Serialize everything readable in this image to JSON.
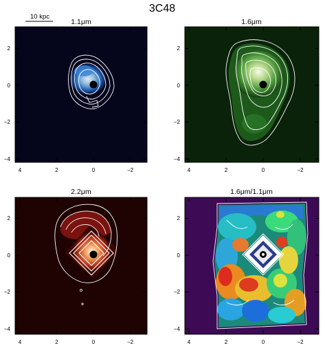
{
  "figure": {
    "title": "3C48",
    "scale_bar_label": "10 kpc",
    "panels": [
      {
        "id": "p11",
        "title": "1.1μm",
        "bg": "#05051c",
        "colormap": "blue"
      },
      {
        "id": "p16",
        "title": "1.6μm",
        "bg": "#0a2209",
        "colormap": "green"
      },
      {
        "id": "p22",
        "title": "2.2μm",
        "bg": "#1f0303",
        "colormap": "red"
      },
      {
        "id": "pratio",
        "title": "1.6μm/1.1μm",
        "bg": "#3d0a55",
        "colormap": "rainbow"
      }
    ],
    "x_tick_labels": [
      "4",
      "2",
      "0",
      "−2"
    ],
    "y_tick_labels": [
      "2",
      "0",
      "−2",
      "−4"
    ]
  }
}
